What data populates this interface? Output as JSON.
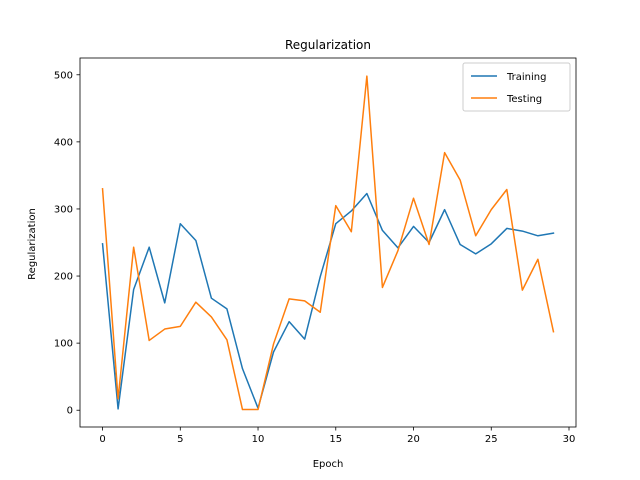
{
  "chart_data": {
    "type": "line",
    "title": "Regularization",
    "xlabel": "Epoch",
    "ylabel": "Regularization",
    "xlim": [
      -1.45,
      30.45
    ],
    "ylim": [
      -25,
      525
    ],
    "xticks": [
      0,
      5,
      10,
      15,
      20,
      25,
      30
    ],
    "yticks": [
      0,
      100,
      200,
      300,
      400,
      500
    ],
    "grid": false,
    "legend_position": "top-right",
    "x": [
      0,
      1,
      2,
      3,
      4,
      5,
      6,
      7,
      8,
      9,
      10,
      11,
      12,
      13,
      14,
      15,
      16,
      17,
      18,
      19,
      20,
      21,
      22,
      23,
      24,
      25,
      26,
      27,
      28,
      29
    ],
    "series": [
      {
        "name": "Training",
        "color": "#1f77b4",
        "values": [
          248,
          2,
          180,
          243,
          160,
          278,
          253,
          167,
          151,
          62,
          3,
          87,
          132,
          106,
          199,
          278,
          297,
          323,
          268,
          242,
          274,
          250,
          299,
          247,
          233,
          248,
          271,
          267,
          260,
          264
        ]
      },
      {
        "name": "Testing",
        "color": "#ff7f0e",
        "values": [
          330,
          17,
          243,
          104,
          121,
          125,
          161,
          139,
          105,
          1,
          1,
          99,
          166,
          163,
          146,
          305,
          266,
          498,
          183,
          238,
          316,
          247,
          384,
          343,
          260,
          299,
          329,
          179,
          225,
          117
        ]
      }
    ]
  }
}
